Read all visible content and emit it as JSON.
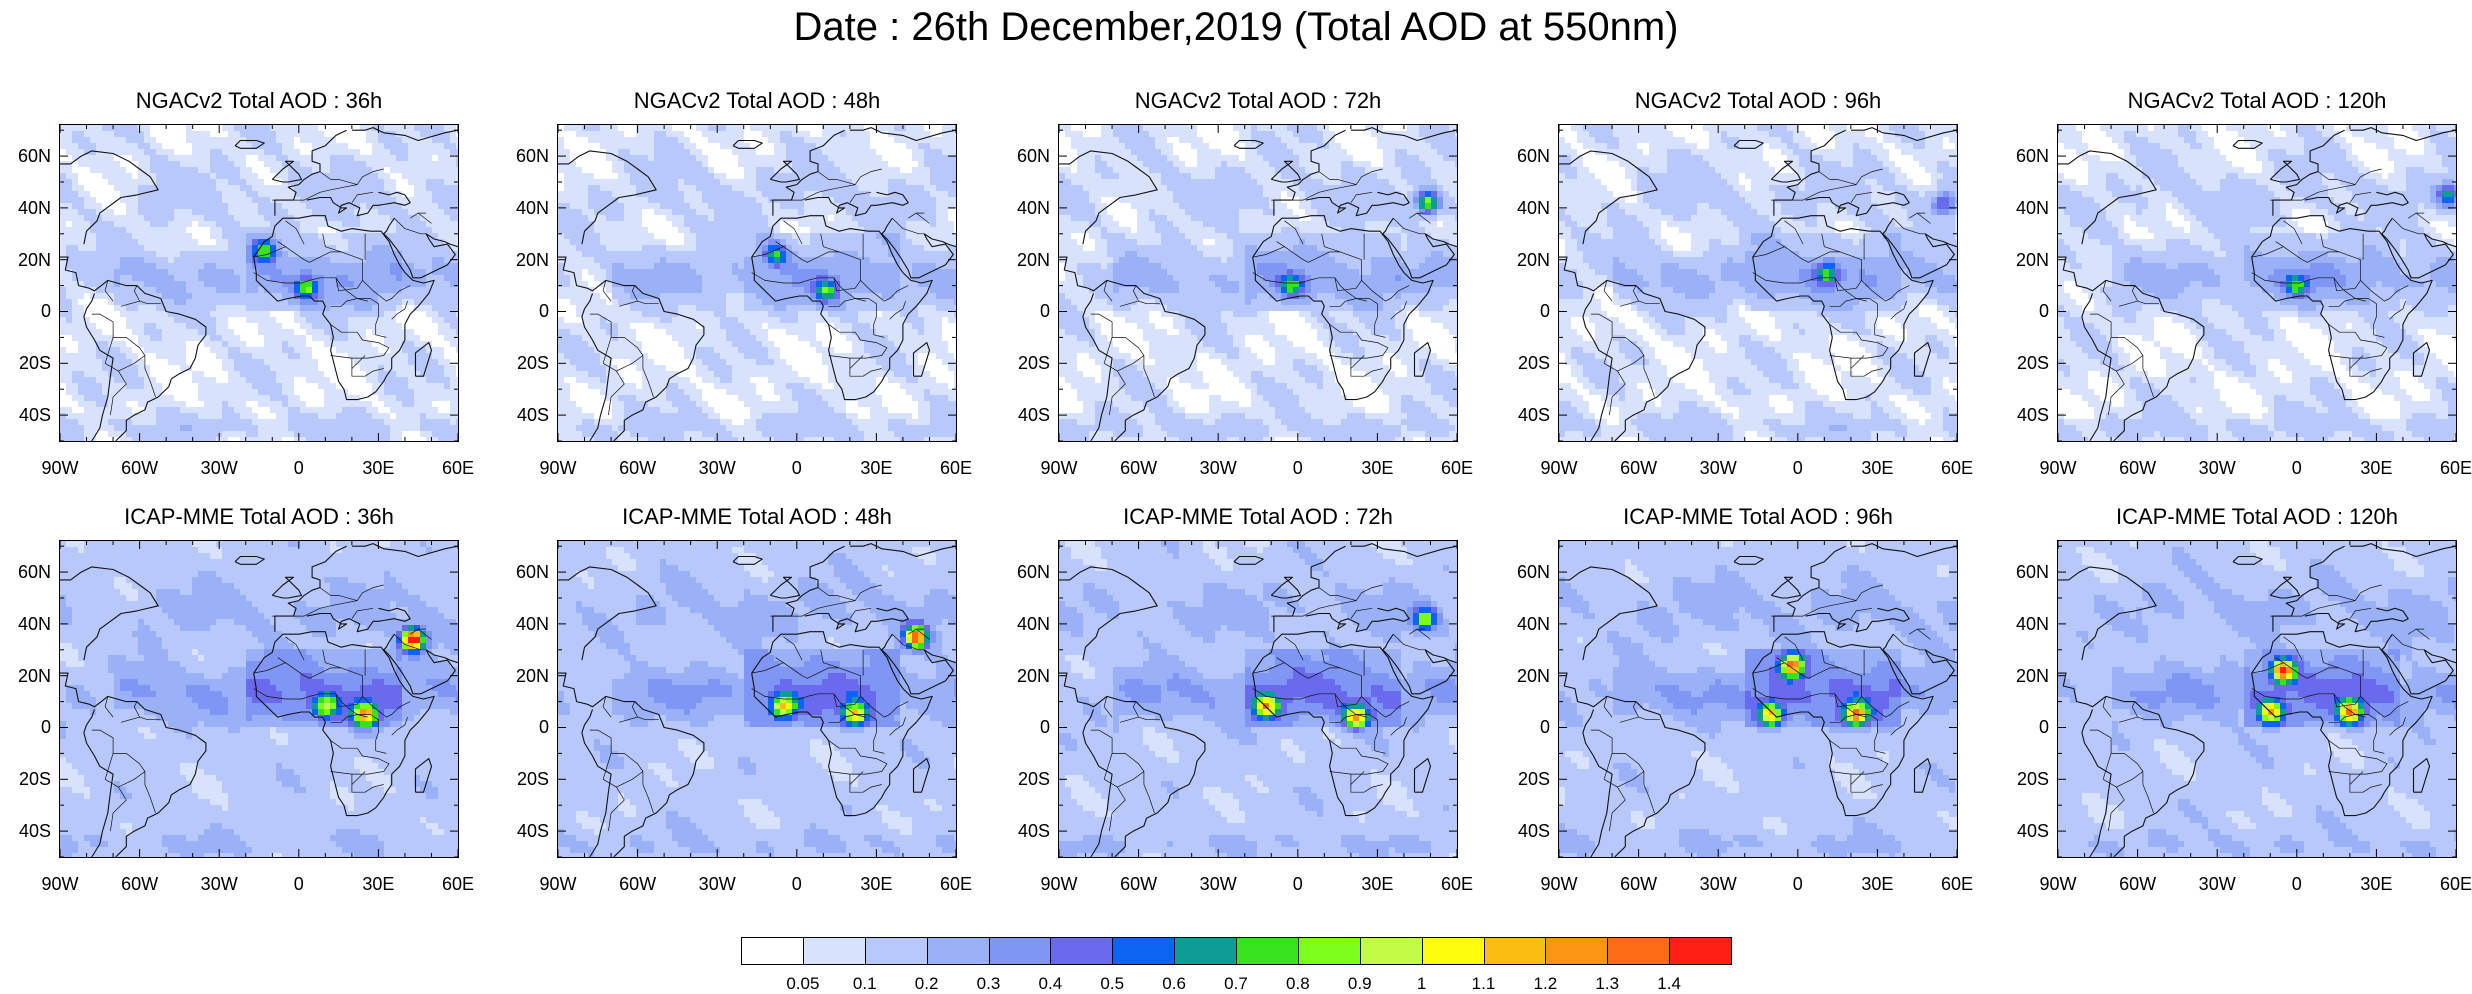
{
  "title": "Date : 26th December,2019 (Total AOD at 550nm)",
  "panels": [
    {
      "title": "NGACv2 Total AOD : 36h",
      "model": "NGACv2",
      "hot": [
        [
          -13,
          24,
          0.6
        ],
        [
          3,
          9,
          0.6
        ]
      ]
    },
    {
      "title": "NGACv2 Total AOD : 48h",
      "model": "NGACv2",
      "hot": [
        [
          -8,
          22,
          0.55
        ],
        [
          11,
          8,
          0.5
        ]
      ]
    },
    {
      "title": "NGACv2 Total AOD : 72h",
      "model": "NGACv2",
      "hot": [
        [
          49,
          42,
          0.8
        ],
        [
          -2,
          10,
          0.5
        ]
      ]
    },
    {
      "title": "NGACv2 Total AOD : 96h",
      "model": "NGACv2",
      "hot": [
        [
          11,
          15,
          0.55
        ],
        [
          55,
          42,
          0.45
        ]
      ]
    },
    {
      "title": "NGACv2 Total AOD : 120h",
      "model": "NGACv2",
      "hot": [
        [
          57,
          45,
          0.6
        ],
        [
          0,
          10,
          0.5
        ]
      ]
    },
    {
      "title": "ICAP-MME Total AOD : 36h",
      "model": "ICAP-MME",
      "hot": [
        [
          43,
          34,
          1.4
        ],
        [
          25,
          5,
          0.9
        ],
        [
          10,
          8,
          0.6
        ]
      ]
    },
    {
      "title": "ICAP-MME Total AOD : 48h",
      "model": "ICAP-MME",
      "hot": [
        [
          45,
          35,
          1.2
        ],
        [
          -5,
          8,
          0.85
        ],
        [
          22,
          5,
          0.85
        ]
      ]
    },
    {
      "title": "ICAP-MME Total AOD : 72h",
      "model": "ICAP-MME",
      "hot": [
        [
          -12,
          8,
          0.9
        ],
        [
          22,
          4,
          0.9
        ],
        [
          48,
          42,
          0.7
        ]
      ]
    },
    {
      "title": "ICAP-MME Total AOD : 96h",
      "model": "ICAP-MME",
      "hot": [
        [
          -2,
          24,
          1.05
        ],
        [
          -10,
          5,
          0.9
        ],
        [
          22,
          5,
          0.95
        ]
      ]
    },
    {
      "title": "ICAP-MME Total AOD : 120h",
      "model": "ICAP-MME",
      "hot": [
        [
          -5,
          22,
          1.2
        ],
        [
          -10,
          6,
          0.9
        ],
        [
          20,
          6,
          0.95
        ]
      ]
    }
  ],
  "map": {
    "lon_range": [
      -90,
      60
    ],
    "lat_range": [
      -50,
      72
    ],
    "x_ticks": [
      -90,
      -60,
      -30,
      0,
      30,
      60
    ],
    "x_tick_labels": [
      "90W",
      "60W",
      "30W",
      "0",
      "30E",
      "60E"
    ],
    "y_ticks": [
      60,
      40,
      20,
      0,
      -20,
      -40
    ],
    "y_tick_labels": [
      "60N",
      "40N",
      "20N",
      "0",
      "20S",
      "40S"
    ]
  },
  "colorbar": {
    "levels": [
      "0.05",
      "0.1",
      "0.2",
      "0.3",
      "0.4",
      "0.5",
      "0.6",
      "0.7",
      "0.8",
      "0.9",
      "1",
      "1.1",
      "1.2",
      "1.3",
      "1.4"
    ],
    "colors": [
      "#ffffff",
      "#d8e2fd",
      "#b8c8fb",
      "#9ab1f8",
      "#7f96f4",
      "#6a6aef",
      "#0b65f2",
      "#0e9c96",
      "#39e21e",
      "#7dfd1a",
      "#c2fc46",
      "#fcfd0d",
      "#fcbd13",
      "#fc9414",
      "#fd6b15",
      "#fc1f12"
    ]
  }
}
